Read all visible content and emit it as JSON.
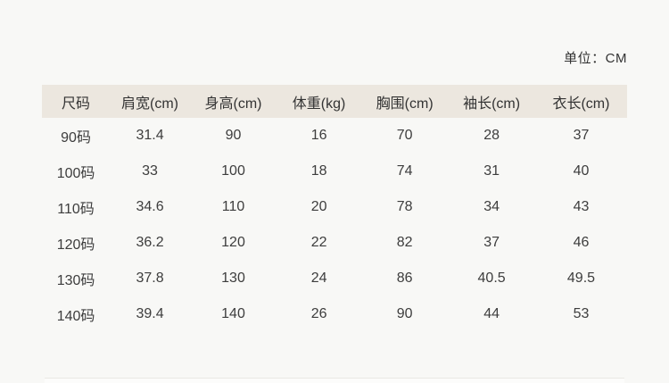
{
  "page": {
    "unit_label": "单位：CM",
    "background_color": "#f8f8f6",
    "header_band_color": "#ece7df",
    "text_color": "#3d3d3d"
  },
  "table": {
    "headers": [
      "尺码",
      "肩宽(cm)",
      "身高(cm)",
      "体重(kg)",
      "胸围(cm)",
      "袖长(cm)",
      "衣长(cm)"
    ],
    "rows": [
      [
        "90码",
        "31.4",
        "90",
        "16",
        "70",
        "28",
        "37"
      ],
      [
        "100码",
        "33",
        "100",
        "18",
        "74",
        "31",
        "40"
      ],
      [
        "110码",
        "34.6",
        "110",
        "20",
        "78",
        "34",
        "43"
      ],
      [
        "120码",
        "36.2",
        "120",
        "22",
        "82",
        "37",
        "46"
      ],
      [
        "130码",
        "37.8",
        "130",
        "24",
        "86",
        "40.5",
        "49.5"
      ],
      [
        "140码",
        "39.4",
        "140",
        "26",
        "90",
        "44",
        "53"
      ]
    ]
  }
}
